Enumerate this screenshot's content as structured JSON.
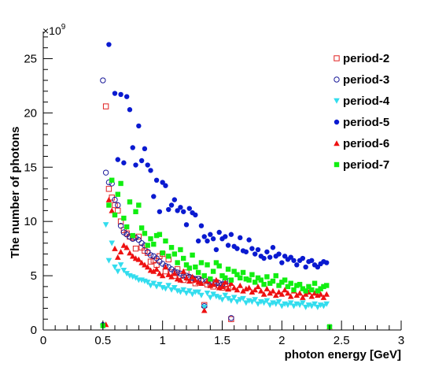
{
  "chart_data": {
    "type": "scatter",
    "title": "",
    "xlabel": "photon energy [GeV]",
    "ylabel": "The number of photons",
    "y_multiplier_base": "×10",
    "y_multiplier_exp": "9",
    "xlim": [
      0,
      3
    ],
    "ylim": [
      0,
      27.5
    ],
    "x_ticks": [
      "0",
      "0.5",
      "1",
      "1.5",
      "2",
      "2.5",
      "3"
    ],
    "y_ticks": [
      "0",
      "5",
      "10",
      "15",
      "20",
      "25"
    ],
    "legend_position": "top-right",
    "grid": false,
    "series": [
      {
        "name": "period-2",
        "color": "#e02020",
        "marker": "open-square",
        "x": [
          0.525,
          0.55,
          0.575,
          0.6,
          0.625,
          0.65,
          0.675,
          0.7,
          0.725,
          0.75,
          0.775,
          0.8,
          0.825,
          0.85,
          0.875,
          0.9,
          0.925,
          0.95,
          0.975,
          1.0,
          1.025,
          1.05,
          1.075,
          1.1,
          1.125,
          1.15,
          1.175,
          1.2,
          1.225,
          1.25,
          1.275,
          1.3,
          1.325,
          1.35,
          1.375,
          1.4,
          1.425,
          1.45,
          1.475,
          1.5,
          1.525,
          1.55,
          1.575
        ],
        "y": [
          20.6,
          13.0,
          12.2,
          11.5,
          11.0,
          10.0,
          9.2,
          8.9,
          8.6,
          8.5,
          7.5,
          8.6,
          7.6,
          7.3,
          7.1,
          6.3,
          6.4,
          6.0,
          6.8,
          7.0,
          5.4,
          6.5,
          5.3,
          5.0,
          5.6,
          5.0,
          4.6,
          5.3,
          4.8,
          4.6,
          4.3,
          4.7,
          4.5,
          2.3,
          4.2,
          4.3,
          4.0,
          4.4,
          4.1,
          3.9,
          4.2,
          3.8,
          1.0
        ]
      },
      {
        "name": "period-3",
        "color": "#1a1a99",
        "marker": "open-circle",
        "x": [
          0.5,
          0.525,
          0.55,
          0.575,
          0.6,
          0.625,
          0.65,
          0.675,
          0.7,
          0.725,
          0.75,
          0.775,
          0.8,
          0.825,
          0.85,
          0.875,
          0.9,
          0.925,
          0.95,
          0.975,
          1.0,
          1.025,
          1.05,
          1.075,
          1.1,
          1.125,
          1.15,
          1.175,
          1.2,
          1.225,
          1.25,
          1.275,
          1.3,
          1.325,
          1.35,
          1.375,
          1.4,
          1.425,
          1.45,
          1.475,
          1.5,
          1.525,
          1.55,
          1.575
        ],
        "y": [
          23.0,
          14.5,
          13.6,
          13.5,
          12.0,
          11.5,
          9.6,
          9.0,
          8.8,
          8.6,
          8.4,
          8.5,
          8.3,
          8.0,
          7.8,
          7.2,
          6.9,
          6.8,
          6.6,
          6.3,
          6.1,
          5.9,
          5.8,
          5.6,
          5.4,
          5.3,
          5.2,
          5.0,
          5.0,
          4.9,
          4.8,
          4.7,
          4.7,
          4.6,
          2.2,
          4.5,
          4.4,
          4.4,
          4.3,
          4.3,
          4.2,
          4.6,
          4.5,
          1.1
        ]
      },
      {
        "name": "period-4",
        "color": "#33ddee",
        "marker": "down-triangle",
        "x": [
          0.5,
          0.525,
          0.55,
          0.575,
          0.6,
          0.625,
          0.65,
          0.675,
          0.7,
          0.725,
          0.75,
          0.775,
          0.8,
          0.825,
          0.85,
          0.875,
          0.9,
          0.925,
          0.95,
          0.975,
          1.0,
          1.025,
          1.05,
          1.075,
          1.1,
          1.125,
          1.15,
          1.175,
          1.2,
          1.225,
          1.25,
          1.275,
          1.3,
          1.325,
          1.35,
          1.375,
          1.4,
          1.425,
          1.45,
          1.475,
          1.5,
          1.525,
          1.55,
          1.575,
          1.6,
          1.625,
          1.65,
          1.675,
          1.7,
          1.725,
          1.75,
          1.775,
          1.8,
          1.825,
          1.85,
          1.875,
          1.9,
          1.925,
          1.95,
          1.975,
          2.0,
          2.025,
          2.05,
          2.075,
          2.1,
          2.125,
          2.15,
          2.175,
          2.2,
          2.225,
          2.25,
          2.275,
          2.3,
          2.325,
          2.35,
          2.375,
          2.4
        ],
        "y": [
          0.3,
          9.7,
          6.4,
          8.0,
          5.8,
          5.4,
          6.0,
          5.5,
          5.2,
          5.0,
          4.9,
          4.8,
          4.6,
          4.6,
          4.5,
          4.4,
          4.1,
          4.3,
          4.0,
          4.2,
          3.9,
          3.8,
          4.1,
          3.7,
          3.9,
          3.6,
          3.5,
          3.7,
          3.4,
          3.6,
          3.3,
          3.5,
          3.5,
          3.2,
          2.1,
          3.4,
          3.0,
          3.3,
          3.1,
          3.0,
          2.8,
          3.2,
          2.9,
          2.7,
          3.0,
          2.6,
          2.8,
          2.9,
          2.5,
          2.7,
          2.6,
          2.8,
          2.4,
          2.6,
          2.5,
          2.7,
          2.3,
          2.5,
          2.4,
          2.6,
          2.2,
          2.4,
          2.3,
          2.5,
          2.2,
          2.4,
          2.3,
          2.5,
          2.1,
          2.3,
          2.2,
          2.4,
          2.1,
          2.3,
          2.2,
          2.4,
          0.2
        ]
      },
      {
        "name": "period-5",
        "color": "#0a1ad0",
        "marker": "filled-circle",
        "x": [
          0.5,
          0.55,
          0.6,
          0.625,
          0.65,
          0.675,
          0.7,
          0.725,
          0.75,
          0.775,
          0.8,
          0.825,
          0.85,
          0.875,
          0.9,
          0.925,
          0.95,
          0.975,
          1.0,
          1.025,
          1.05,
          1.075,
          1.1,
          1.125,
          1.15,
          1.175,
          1.2,
          1.225,
          1.25,
          1.275,
          1.3,
          1.325,
          1.35,
          1.375,
          1.4,
          1.425,
          1.45,
          1.475,
          1.5,
          1.525,
          1.55,
          1.575,
          1.6,
          1.625,
          1.65,
          1.675,
          1.7,
          1.725,
          1.75,
          1.775,
          1.8,
          1.825,
          1.85,
          1.875,
          1.9,
          1.925,
          1.95,
          1.975,
          2.0,
          2.025,
          2.05,
          2.075,
          2.1,
          2.125,
          2.15,
          2.175,
          2.2,
          2.225,
          2.25,
          2.275,
          2.3,
          2.325,
          2.35,
          2.375,
          2.4
        ],
        "y": [
          0.5,
          26.3,
          21.8,
          15.7,
          21.7,
          15.4,
          21.5,
          20.3,
          16.8,
          15.2,
          18.8,
          15.6,
          16.7,
          15.2,
          14.7,
          12.3,
          13.8,
          10.9,
          13.6,
          13.3,
          11.1,
          11.5,
          12.0,
          11.0,
          11.3,
          10.9,
          9.7,
          11.2,
          10.8,
          10.6,
          8.2,
          9.6,
          8.6,
          8.2,
          8.8,
          8.4,
          7.4,
          9.0,
          8.4,
          8.6,
          7.8,
          8.8,
          7.7,
          7.5,
          8.5,
          7.3,
          7.2,
          8.3,
          7.5,
          7.0,
          7.4,
          6.8,
          6.6,
          7.2,
          6.7,
          7.6,
          6.8,
          7.0,
          6.2,
          6.8,
          6.5,
          6.7,
          6.4,
          6.0,
          6.4,
          6.6,
          5.8,
          6.3,
          6.4,
          6.0,
          5.8,
          6.1,
          6.3,
          6.2,
          0.3
        ]
      },
      {
        "name": "period-6",
        "color": "#ee1111",
        "marker": "up-triangle",
        "x": [
          0.525,
          0.55,
          0.575,
          0.6,
          0.625,
          0.65,
          0.675,
          0.7,
          0.725,
          0.75,
          0.775,
          0.8,
          0.825,
          0.85,
          0.875,
          0.9,
          0.925,
          0.95,
          0.975,
          1.0,
          1.025,
          1.05,
          1.075,
          1.1,
          1.125,
          1.15,
          1.175,
          1.2,
          1.225,
          1.25,
          1.275,
          1.3,
          1.325,
          1.35,
          1.375,
          1.4,
          1.425,
          1.45,
          1.475,
          1.5,
          1.525,
          1.55,
          1.575,
          1.6,
          1.625,
          1.65,
          1.675,
          1.7,
          1.725,
          1.75,
          1.775,
          1.8,
          1.825,
          1.85,
          1.875,
          1.9,
          1.925,
          1.95,
          1.975,
          2.0,
          2.025,
          2.05,
          2.075,
          2.1,
          2.125,
          2.15,
          2.175,
          2.2,
          2.225,
          2.25,
          2.275,
          2.3,
          2.325,
          2.35,
          2.375,
          2.4
        ],
        "y": [
          0.5,
          12.0,
          11.0,
          7.5,
          6.7,
          7.2,
          7.8,
          7.6,
          7.1,
          6.8,
          6.6,
          6.5,
          6.2,
          6.0,
          5.8,
          5.5,
          5.4,
          5.6,
          5.2,
          5.0,
          5.8,
          5.1,
          4.9,
          5.2,
          4.7,
          4.6,
          5.4,
          4.8,
          4.5,
          4.9,
          4.6,
          4.4,
          4.3,
          1.8,
          4.5,
          4.1,
          4.2,
          4.6,
          3.9,
          4.0,
          4.4,
          3.8,
          4.3,
          3.9,
          3.7,
          4.1,
          3.6,
          3.8,
          3.9,
          3.5,
          3.7,
          4.0,
          3.6,
          3.3,
          3.8,
          3.4,
          3.6,
          3.2,
          3.5,
          3.3,
          3.7,
          3.4,
          3.1,
          3.6,
          3.2,
          3.4,
          3.0,
          3.3,
          3.5,
          3.1,
          3.4,
          3.2,
          3.3,
          3.0,
          3.3,
          0.3
        ]
      },
      {
        "name": "period-7",
        "color": "#11ee11",
        "marker": "filled-square",
        "x": [
          0.5,
          0.55,
          0.575,
          0.6,
          0.625,
          0.65,
          0.675,
          0.7,
          0.725,
          0.75,
          0.775,
          0.8,
          0.825,
          0.85,
          0.875,
          0.9,
          0.925,
          0.95,
          0.975,
          1.0,
          1.025,
          1.05,
          1.075,
          1.1,
          1.125,
          1.15,
          1.175,
          1.2,
          1.225,
          1.25,
          1.275,
          1.3,
          1.325,
          1.35,
          1.375,
          1.4,
          1.425,
          1.45,
          1.475,
          1.5,
          1.525,
          1.55,
          1.575,
          1.6,
          1.625,
          1.65,
          1.675,
          1.7,
          1.725,
          1.75,
          1.775,
          1.8,
          1.825,
          1.85,
          1.875,
          1.9,
          1.925,
          1.95,
          1.975,
          2.0,
          2.025,
          2.05,
          2.075,
          2.1,
          2.125,
          2.15,
          2.175,
          2.2,
          2.225,
          2.25,
          2.275,
          2.3,
          2.325,
          2.35,
          2.375,
          2.4
        ],
        "y": [
          0.4,
          11.5,
          13.8,
          10.6,
          12.5,
          13.5,
          10.3,
          9.5,
          11.8,
          8.7,
          10.9,
          11.5,
          9.4,
          8.9,
          7.8,
          8.4,
          7.9,
          8.7,
          8.8,
          7.1,
          8.2,
          6.8,
          7.6,
          7.0,
          6.2,
          7.4,
          6.6,
          6.0,
          5.7,
          6.9,
          5.8,
          5.3,
          6.2,
          5.0,
          6.0,
          4.7,
          5.4,
          6.2,
          5.9,
          5.0,
          4.8,
          5.6,
          4.6,
          5.4,
          5.1,
          4.8,
          5.3,
          4.7,
          4.6,
          5.1,
          4.4,
          4.8,
          4.6,
          4.2,
          4.9,
          4.3,
          4.5,
          5.0,
          4.1,
          4.4,
          4.6,
          4.0,
          4.3,
          3.7,
          4.1,
          4.2,
          3.8,
          3.6,
          4.0,
          3.7,
          4.3,
          3.6,
          3.8,
          4.0,
          4.1,
          0.3
        ]
      }
    ]
  }
}
